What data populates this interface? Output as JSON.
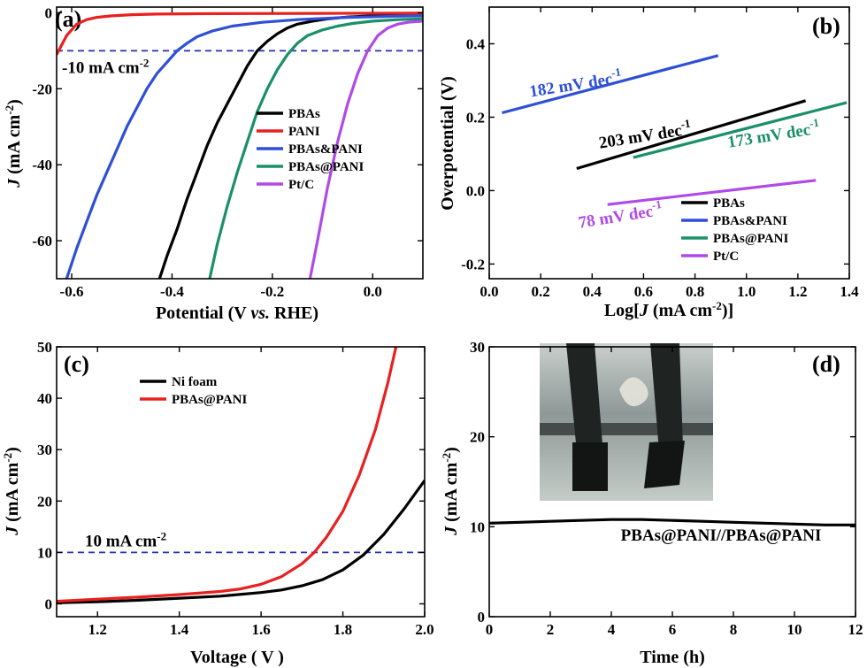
{
  "panels": [
    {
      "id": "a",
      "label": "(a)",
      "xlabel_parts": [
        "Potential (V ",
        "vs.",
        " RHE)"
      ],
      "ylabel_parts": [
        "J",
        " (mA cm",
        "-2",
        ")"
      ]
    },
    {
      "id": "b",
      "label": "(b)",
      "xlabel_parts": [
        "Log[",
        "J",
        " (mA cm",
        "-2",
        ")]"
      ],
      "ylabel": "Overpotential (V)"
    },
    {
      "id": "c",
      "label": "(c)",
      "xlabel": "Voltage ( V )",
      "ylabel_parts": [
        "J",
        " (mA cm",
        "-2",
        ")"
      ]
    },
    {
      "id": "d",
      "label": "(d)",
      "xlabel": "Time (h)",
      "ylabel_parts": [
        "J",
        " (mA cm",
        "-2",
        ")"
      ],
      "inset": "photo of two electrodes in electrolyte"
    }
  ],
  "chart_data": [
    {
      "panel": "a",
      "type": "line",
      "xlim": [
        -0.63,
        0.1
      ],
      "ylim": [
        -70,
        1.5
      ],
      "xticks": [
        -0.6,
        -0.4,
        -0.2,
        0.0
      ],
      "xtick_labels": [
        "-0.6",
        "-0.4",
        "-0.2",
        "0.0"
      ],
      "yticks": [
        0,
        -20,
        -40,
        -60
      ],
      "ytick_labels": [
        "0",
        "-20",
        "-40",
        "-60"
      ],
      "hline": {
        "y": -10,
        "label_parts": [
          "-10 mA cm",
          "-2"
        ],
        "color": "#2b2bb0"
      },
      "legend_position": "center-right",
      "series": [
        {
          "name": "PBAs",
          "color": "#000000",
          "x": [
            -0.425,
            -0.41,
            -0.39,
            -0.37,
            -0.35,
            -0.33,
            -0.31,
            -0.29,
            -0.27,
            -0.25,
            -0.23,
            -0.21,
            -0.19,
            -0.17,
            -0.15,
            -0.12,
            -0.09,
            -0.05,
            0.0,
            0.05,
            0.1
          ],
          "y": [
            -70,
            -64,
            -57,
            -49,
            -42,
            -35,
            -29,
            -24,
            -19,
            -14,
            -10,
            -7.5,
            -5.5,
            -4,
            -3,
            -2.2,
            -1.6,
            -1.1,
            -0.8,
            -0.6,
            -0.5
          ]
        },
        {
          "name": "PANI",
          "color": "#e8201f",
          "x": [
            -0.63,
            -0.61,
            -0.59,
            -0.57,
            -0.55,
            -0.52,
            -0.48,
            -0.43,
            -0.35,
            -0.25,
            -0.1,
            0.1
          ],
          "y": [
            -11,
            -6,
            -3,
            -1.8,
            -1.2,
            -0.8,
            -0.5,
            -0.35,
            -0.25,
            -0.2,
            -0.15,
            -0.1
          ]
        },
        {
          "name": "PBAs&PANI",
          "color": "#2e4fd6",
          "x": [
            -0.61,
            -0.59,
            -0.57,
            -0.55,
            -0.53,
            -0.51,
            -0.49,
            -0.47,
            -0.45,
            -0.43,
            -0.41,
            -0.39,
            -0.37,
            -0.35,
            -0.32,
            -0.28,
            -0.22,
            -0.15,
            -0.05,
            0.05,
            0.1
          ],
          "y": [
            -70,
            -62,
            -55,
            -48,
            -42,
            -36,
            -30,
            -25,
            -20,
            -16,
            -13,
            -10,
            -8,
            -6.3,
            -4.8,
            -3.5,
            -2.5,
            -1.8,
            -1.2,
            -0.9,
            -0.8
          ]
        },
        {
          "name": "PBAs@PANI",
          "color": "#1a9068",
          "x": [
            -0.325,
            -0.31,
            -0.29,
            -0.27,
            -0.25,
            -0.23,
            -0.21,
            -0.19,
            -0.17,
            -0.15,
            -0.13,
            -0.1,
            -0.07,
            -0.04,
            0.0,
            0.05,
            0.1
          ],
          "y": [
            -70,
            -61,
            -51,
            -42,
            -34,
            -26,
            -20,
            -15,
            -11,
            -8,
            -6,
            -4.5,
            -3.5,
            -2.8,
            -2.2,
            -1.8,
            -1.6
          ]
        },
        {
          "name": "Pt/C",
          "color": "#b04ae6",
          "x": [
            -0.125,
            -0.11,
            -0.09,
            -0.07,
            -0.05,
            -0.03,
            -0.01,
            0.01,
            0.03,
            0.05,
            0.07,
            0.1
          ],
          "y": [
            -70,
            -60,
            -46,
            -34,
            -24,
            -16,
            -10,
            -6,
            -4,
            -3,
            -2.5,
            -2.2
          ]
        }
      ]
    },
    {
      "panel": "b",
      "type": "line",
      "xlim": [
        0,
        1.4
      ],
      "ylim": [
        -0.24,
        0.5
      ],
      "xticks": [
        0.0,
        0.2,
        0.4,
        0.6,
        0.8,
        1.0,
        1.2,
        1.4
      ],
      "xtick_labels": [
        "0.0",
        "0.2",
        "0.4",
        "0.6",
        "0.8",
        "1.0",
        "1.2",
        "1.4"
      ],
      "yticks": [
        -0.2,
        0.0,
        0.2,
        0.4
      ],
      "ytick_labels": [
        "-0.2",
        "0.0",
        "0.2",
        "0.4"
      ],
      "legend_position": "bottom-right",
      "series": [
        {
          "name": "PBAs",
          "color": "#000000",
          "x": [
            0.34,
            1.23
          ],
          "y": [
            0.06,
            0.245
          ],
          "slope_label_parts": [
            "203 mV dec",
            "-1"
          ],
          "slope_label_at": [
            0.43,
            0.115
          ]
        },
        {
          "name": "PBAs&PANI",
          "color": "#2e4fd6",
          "x": [
            0.05,
            0.89
          ],
          "y": [
            0.212,
            0.368
          ],
          "slope_label_parts": [
            "182 mV dec",
            "-1"
          ],
          "slope_label_at": [
            0.16,
            0.255
          ]
        },
        {
          "name": "PBAs@PANI",
          "color": "#1a9068",
          "x": [
            0.56,
            1.39
          ],
          "y": [
            0.09,
            0.24
          ],
          "slope_label_parts": [
            "173 mV dec",
            "-1"
          ],
          "slope_label_at": [
            0.93,
            0.117
          ]
        },
        {
          "name": "Pt/C",
          "color": "#b04ae6",
          "x": [
            0.46,
            1.27
          ],
          "y": [
            -0.038,
            0.028
          ],
          "slope_label_parts": [
            "78 mV dec",
            "-1"
          ],
          "slope_label_at": [
            0.35,
            -0.102
          ]
        }
      ]
    },
    {
      "panel": "c",
      "type": "line",
      "xlim": [
        1.1,
        2.0
      ],
      "ylim": [
        -2.5,
        50
      ],
      "xticks": [
        1.2,
        1.4,
        1.6,
        1.8,
        2.0
      ],
      "xtick_labels": [
        "1.2",
        "1.4",
        "1.6",
        "1.8",
        "2.0"
      ],
      "yticks": [
        0,
        10,
        20,
        30,
        40,
        50
      ],
      "ytick_labels": [
        "0",
        "10",
        "20",
        "30",
        "40",
        "50"
      ],
      "hline": {
        "y": 10,
        "label_parts": [
          "10 mA cm",
          "-2"
        ],
        "color": "#2b2bb0"
      },
      "legend_position": "top-left",
      "series": [
        {
          "name": "Ni foam",
          "color": "#000000",
          "x": [
            1.1,
            1.2,
            1.3,
            1.4,
            1.5,
            1.6,
            1.65,
            1.7,
            1.75,
            1.8,
            1.85,
            1.9,
            1.95,
            2.0
          ],
          "y": [
            0.2,
            0.4,
            0.7,
            1.1,
            1.5,
            2.2,
            2.7,
            3.5,
            4.7,
            6.6,
            9.5,
            13.5,
            18.5,
            24
          ]
        },
        {
          "name": "PBAs@PANI",
          "color": "#e8201f",
          "x": [
            1.1,
            1.2,
            1.3,
            1.4,
            1.5,
            1.55,
            1.6,
            1.65,
            1.7,
            1.73,
            1.76,
            1.8,
            1.84,
            1.88,
            1.91,
            1.93
          ],
          "y": [
            0.5,
            0.9,
            1.3,
            1.8,
            2.4,
            2.9,
            3.8,
            5.3,
            7.8,
            10,
            13,
            18,
            25,
            34,
            43,
            50
          ]
        }
      ]
    },
    {
      "panel": "d",
      "type": "line",
      "xlim": [
        0,
        12
      ],
      "ylim": [
        0,
        30
      ],
      "xticks": [
        0,
        2,
        4,
        6,
        8,
        10,
        12
      ],
      "xtick_labels": [
        "0",
        "2",
        "4",
        "6",
        "8",
        "10",
        "12"
      ],
      "yticks": [
        0,
        10,
        20,
        30
      ],
      "ytick_labels": [
        "0",
        "10",
        "20",
        "30"
      ],
      "annotation": "PBAs@PANI//PBAs@PANI",
      "series": [
        {
          "name": "PBAs@PANI//PBAs@PANI",
          "color": "#000000",
          "x": [
            0,
            1,
            2,
            3,
            4,
            5,
            6,
            7,
            8,
            9,
            10,
            11,
            12
          ],
          "y": [
            10.4,
            10.5,
            10.6,
            10.7,
            10.8,
            10.8,
            10.7,
            10.6,
            10.5,
            10.4,
            10.3,
            10.2,
            10.2
          ]
        }
      ]
    }
  ]
}
